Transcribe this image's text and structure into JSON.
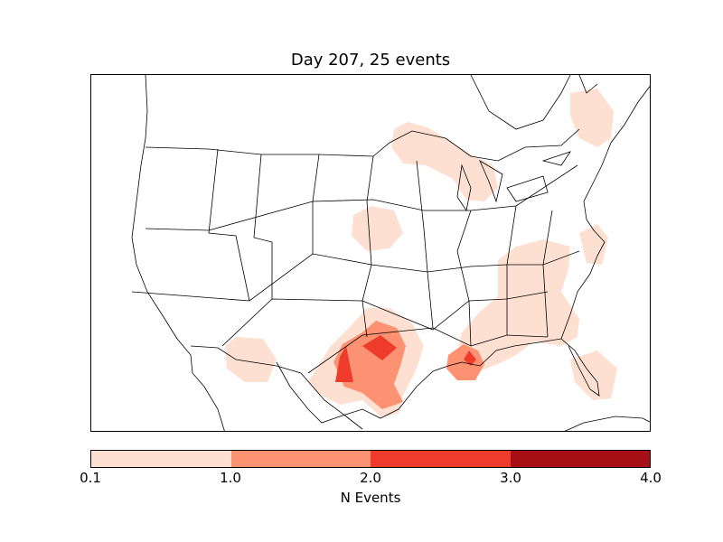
{
  "title": "Day 207, 25 events",
  "colorbar": {
    "label": "N Events",
    "ticks": [
      "0.1",
      "1.0",
      "2.0",
      "3.0",
      "4.0"
    ],
    "colors": [
      "#fee0d2",
      "#fc9272",
      "#ef3b2c",
      "#a50f15"
    ]
  },
  "density_colors": {
    "level_1": "#fee0d2",
    "level_2": "#fc9272",
    "level_3": "#ef3b2c"
  }
}
